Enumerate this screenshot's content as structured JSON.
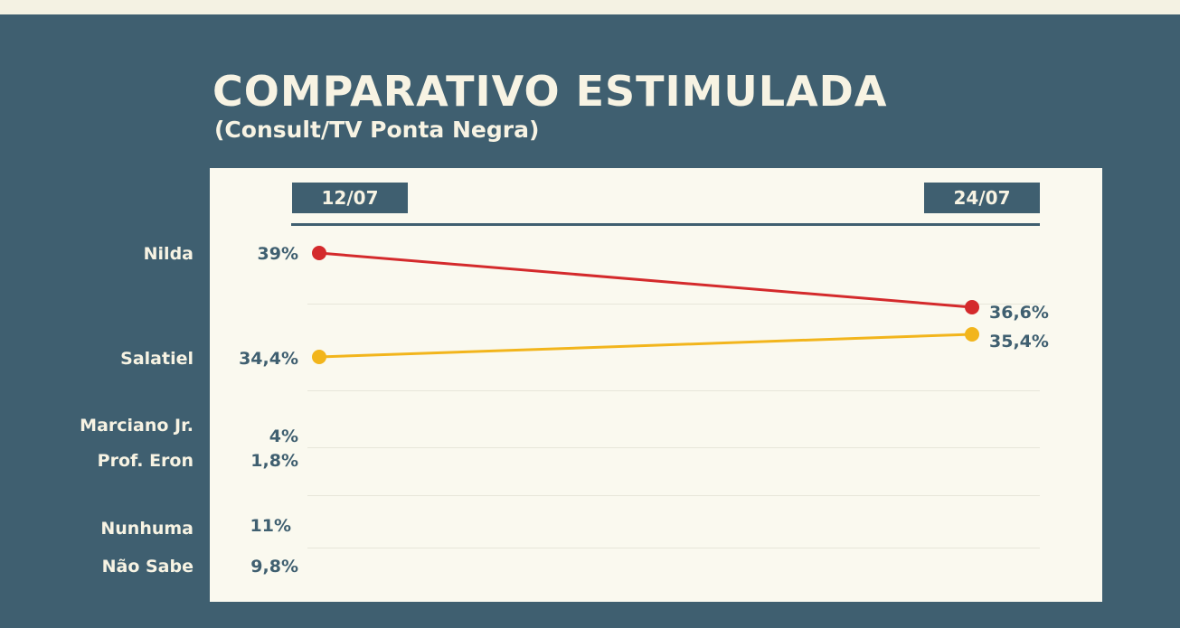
{
  "chart_data": {
    "type": "line",
    "title": "COMPARATIVO",
    "title_bold": "ESTIMULADA",
    "subtitle": "(Consult/TV Ponta Negra)",
    "x": [
      "12/07",
      "24/07"
    ],
    "series": [
      {
        "name": "Nilda",
        "values": [
          39,
          36.6
        ],
        "labels": [
          "39%",
          "36,6%"
        ],
        "color": "#d42a2c"
      },
      {
        "name": "Salatiel",
        "values": [
          34.4,
          35.4
        ],
        "labels": [
          "34,4%",
          "35,4%"
        ],
        "color": "#f2b51c"
      }
    ],
    "others": [
      {
        "name": "Marciano Jr.",
        "value": 4,
        "label": "4%"
      },
      {
        "name": "Prof. Eron",
        "value": 1.8,
        "label": "1,8%"
      },
      {
        "name": "Nunhuma",
        "value": 11,
        "label": "11%"
      },
      {
        "name": "Não Sabe",
        "value": 9.8,
        "label": "9,8%"
      }
    ],
    "grid": true,
    "legend": "none"
  }
}
